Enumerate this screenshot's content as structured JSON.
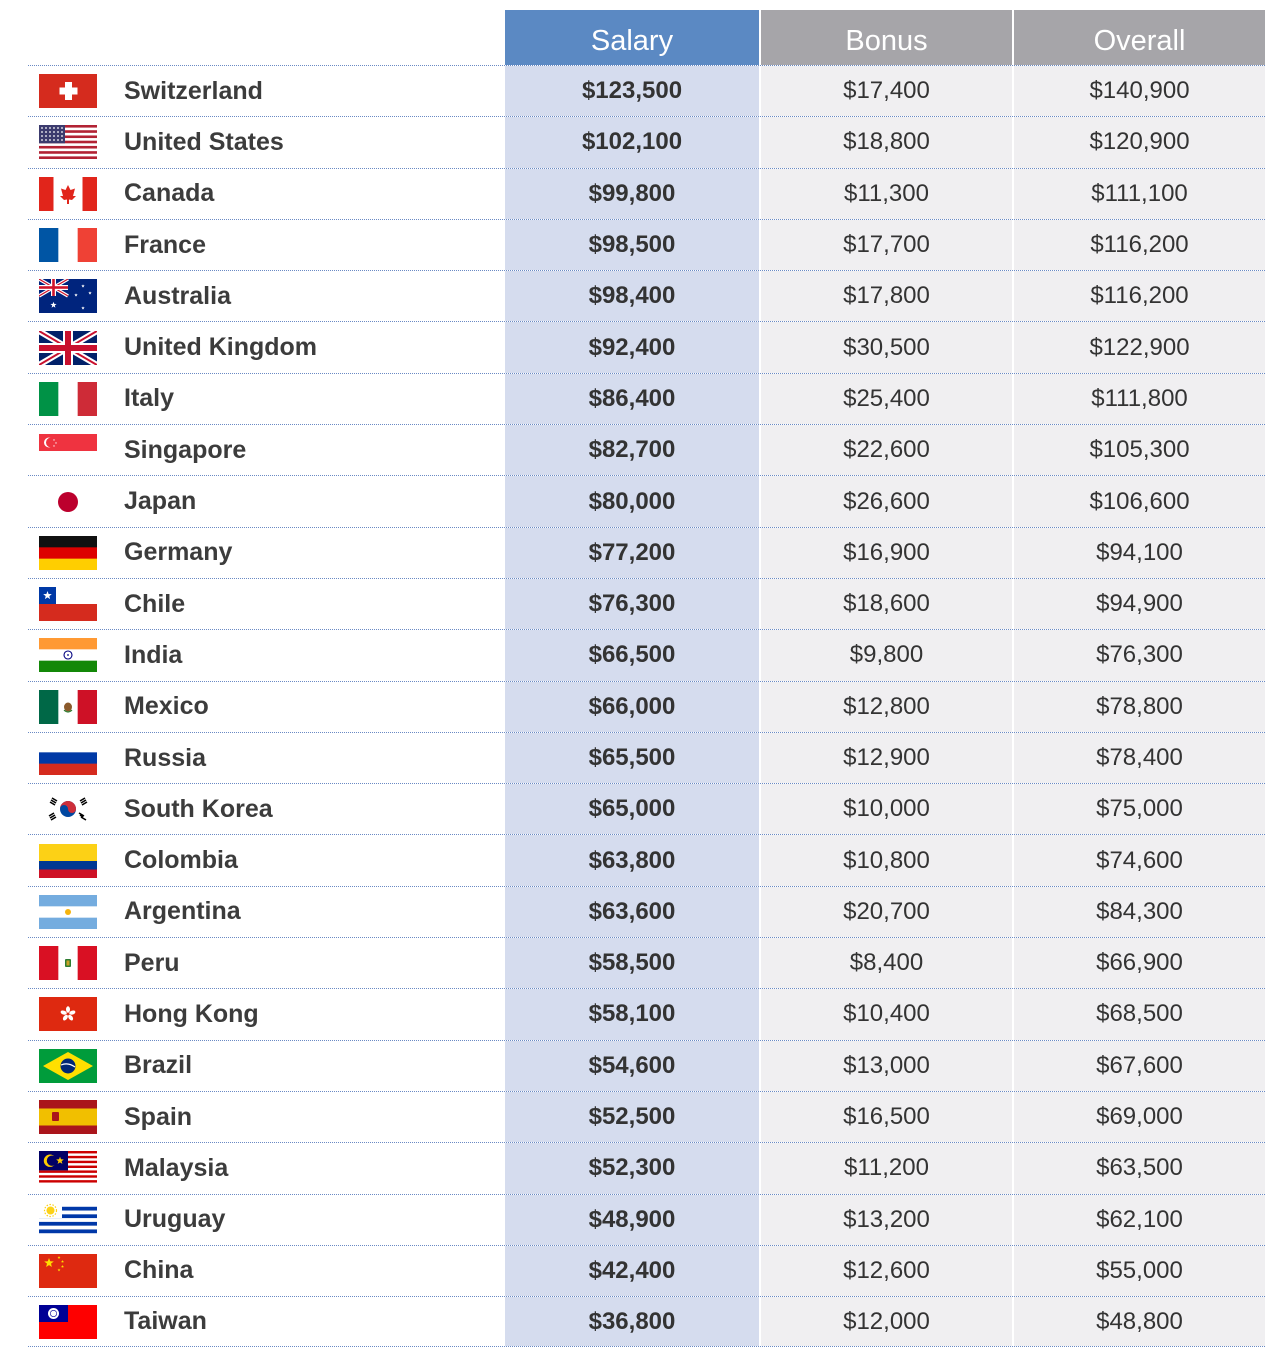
{
  "columns": {
    "salary": "Salary",
    "bonus": "Bonus",
    "overall": "Overall"
  },
  "colors": {
    "salary_header": "#5b89c3",
    "other_header": "#a6a5a9",
    "salary_cells": "#d5dcee",
    "other_cells": "#f0eff1"
  },
  "chart_data": {
    "type": "table",
    "columns": [
      "",
      "Salary",
      "Bonus",
      "Overall"
    ],
    "rows": [
      {
        "country": "Switzerland",
        "flag": "switzerland-flag",
        "salary": "$123,500",
        "bonus": "$17,400",
        "overall": "$140,900"
      },
      {
        "country": "United States",
        "flag": "united-states-flag",
        "salary": "$102,100",
        "bonus": "$18,800",
        "overall": "$120,900"
      },
      {
        "country": "Canada",
        "flag": "canada-flag",
        "salary": "$99,800",
        "bonus": "$11,300",
        "overall": "$111,100"
      },
      {
        "country": "France",
        "flag": "france-flag",
        "salary": "$98,500",
        "bonus": "$17,700",
        "overall": "$116,200"
      },
      {
        "country": "Australia",
        "flag": "australia-flag",
        "salary": "$98,400",
        "bonus": "$17,800",
        "overall": "$116,200"
      },
      {
        "country": "United Kingdom",
        "flag": "united-kingdom-flag",
        "salary": "$92,400",
        "bonus": "$30,500",
        "overall": "$122,900"
      },
      {
        "country": "Italy",
        "flag": "italy-flag",
        "salary": "$86,400",
        "bonus": "$25,400",
        "overall": "$111,800"
      },
      {
        "country": "Singapore",
        "flag": "singapore-flag",
        "salary": "$82,700",
        "bonus": "$22,600",
        "overall": "$105,300"
      },
      {
        "country": "Japan",
        "flag": "japan-flag",
        "salary": "$80,000",
        "bonus": "$26,600",
        "overall": "$106,600"
      },
      {
        "country": "Germany",
        "flag": "germany-flag",
        "salary": "$77,200",
        "bonus": "$16,900",
        "overall": "$94,100"
      },
      {
        "country": "Chile",
        "flag": "chile-flag",
        "salary": "$76,300",
        "bonus": "$18,600",
        "overall": "$94,900"
      },
      {
        "country": "India",
        "flag": "india-flag",
        "salary": "$66,500",
        "bonus": "$9,800",
        "overall": "$76,300"
      },
      {
        "country": "Mexico",
        "flag": "mexico-flag",
        "salary": "$66,000",
        "bonus": "$12,800",
        "overall": "$78,800"
      },
      {
        "country": "Russia",
        "flag": "russia-flag",
        "salary": "$65,500",
        "bonus": "$12,900",
        "overall": "$78,400"
      },
      {
        "country": "South Korea",
        "flag": "south-korea-flag",
        "salary": "$65,000",
        "bonus": "$10,000",
        "overall": "$75,000"
      },
      {
        "country": "Colombia",
        "flag": "colombia-flag",
        "salary": "$63,800",
        "bonus": "$10,800",
        "overall": "$74,600"
      },
      {
        "country": "Argentina",
        "flag": "argentina-flag",
        "salary": "$63,600",
        "bonus": "$20,700",
        "overall": "$84,300"
      },
      {
        "country": "Peru",
        "flag": "peru-flag",
        "salary": "$58,500",
        "bonus": "$8,400",
        "overall": "$66,900"
      },
      {
        "country": "Hong Kong",
        "flag": "hong-kong-flag",
        "salary": "$58,100",
        "bonus": "$10,400",
        "overall": "$68,500"
      },
      {
        "country": "Brazil",
        "flag": "brazil-flag",
        "salary": "$54,600",
        "bonus": "$13,000",
        "overall": "$67,600"
      },
      {
        "country": "Spain",
        "flag": "spain-flag",
        "salary": "$52,500",
        "bonus": "$16,500",
        "overall": "$69,000"
      },
      {
        "country": "Malaysia",
        "flag": "malaysia-flag",
        "salary": "$52,300",
        "bonus": "$11,200",
        "overall": "$63,500"
      },
      {
        "country": "Uruguay",
        "flag": "uruguay-flag",
        "salary": "$48,900",
        "bonus": "$13,200",
        "overall": "$62,100"
      },
      {
        "country": "China",
        "flag": "china-flag",
        "salary": "$42,400",
        "bonus": "$12,600",
        "overall": "$55,000"
      },
      {
        "country": "Taiwan",
        "flag": "taiwan-flag",
        "salary": "$36,800",
        "bonus": "$12,000",
        "overall": "$48,800"
      }
    ]
  }
}
